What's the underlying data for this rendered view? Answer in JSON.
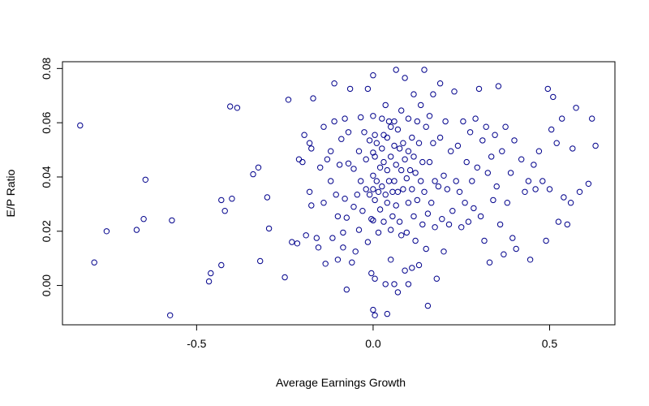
{
  "chart_data": {
    "type": "scatter",
    "xlabel": "Average Earnings Growth",
    "ylabel": "E/P Ratio",
    "xlim": [
      -0.88,
      0.685
    ],
    "ylim": [
      -0.0145,
      0.0825
    ],
    "x_ticks": [
      -0.5,
      0.0,
      0.5
    ],
    "x_tick_labels": [
      "-0.5",
      "0.0",
      "0.5"
    ],
    "y_ticks": [
      0.0,
      0.02,
      0.04,
      0.06,
      0.08
    ],
    "y_tick_labels": [
      "0.00",
      "0.02",
      "0.04",
      "0.06",
      "0.08"
    ],
    "grid": false,
    "marker": "open-circle",
    "point_color": "#00008B",
    "points": [
      [
        -0.83,
        0.059
      ],
      [
        -0.79,
        0.0085
      ],
      [
        -0.755,
        0.02
      ],
      [
        -0.67,
        0.0205
      ],
      [
        -0.65,
        0.0245
      ],
      [
        -0.645,
        0.039
      ],
      [
        -0.57,
        0.024
      ],
      [
        -0.575,
        -0.011
      ],
      [
        -0.465,
        0.0015
      ],
      [
        -0.46,
        0.0045
      ],
      [
        -0.43,
        0.0075
      ],
      [
        -0.43,
        0.0315
      ],
      [
        -0.42,
        0.0275
      ],
      [
        -0.405,
        0.066
      ],
      [
        -0.4,
        0.032
      ],
      [
        -0.385,
        0.0655
      ],
      [
        -0.34,
        0.041
      ],
      [
        -0.325,
        0.0435
      ],
      [
        -0.32,
        0.009
      ],
      [
        -0.3,
        0.0325
      ],
      [
        -0.295,
        0.021
      ],
      [
        -0.25,
        0.003
      ],
      [
        -0.24,
        0.0685
      ],
      [
        -0.23,
        0.016
      ],
      [
        -0.215,
        0.0155
      ],
      [
        -0.21,
        0.0465
      ],
      [
        -0.2,
        0.0455
      ],
      [
        -0.195,
        0.0555
      ],
      [
        -0.19,
        0.0185
      ],
      [
        -0.18,
        0.0525
      ],
      [
        -0.18,
        0.0345
      ],
      [
        -0.175,
        0.0505
      ],
      [
        -0.175,
        0.0295
      ],
      [
        -0.17,
        0.069
      ],
      [
        -0.16,
        0.0175
      ],
      [
        -0.155,
        0.014
      ],
      [
        -0.15,
        0.0435
      ],
      [
        -0.14,
        0.0585
      ],
      [
        -0.14,
        0.0305
      ],
      [
        -0.135,
        0.008
      ],
      [
        -0.13,
        0.0465
      ],
      [
        -0.12,
        0.0495
      ],
      [
        -0.12,
        0.0385
      ],
      [
        -0.115,
        0.0175
      ],
      [
        -0.11,
        0.0745
      ],
      [
        -0.11,
        0.0605
      ],
      [
        -0.105,
        0.0335
      ],
      [
        -0.1,
        0.0255
      ],
      [
        -0.1,
        0.0095
      ],
      [
        -0.095,
        0.0445
      ],
      [
        -0.09,
        0.054
      ],
      [
        -0.085,
        0.0195
      ],
      [
        -0.085,
        0.014
      ],
      [
        -0.08,
        0.0615
      ],
      [
        -0.08,
        0.032
      ],
      [
        -0.075,
        0.025
      ],
      [
        -0.075,
        -0.0015
      ],
      [
        -0.07,
        0.0565
      ],
      [
        -0.07,
        0.045
      ],
      [
        -0.065,
        0.0725
      ],
      [
        -0.06,
        0.0085
      ],
      [
        -0.055,
        0.043
      ],
      [
        -0.055,
        0.029
      ],
      [
        -0.05,
        0.0125
      ],
      [
        -0.045,
        0.0335
      ],
      [
        -0.04,
        0.0495
      ],
      [
        -0.04,
        0.0205
      ],
      [
        -0.035,
        0.062
      ],
      [
        -0.035,
        0.0385
      ],
      [
        -0.03,
        0.0275
      ],
      [
        -0.025,
        0.0565
      ],
      [
        -0.02,
        0.0465
      ],
      [
        -0.02,
        0.0355
      ],
      [
        -0.015,
        0.0725
      ],
      [
        -0.015,
        0.016
      ],
      [
        -0.01,
        0.0535
      ],
      [
        -0.01,
        0.0335
      ],
      [
        -0.005,
        0.0245
      ],
      [
        -0.005,
        0.0045
      ],
      [
        0.0,
        0.0775
      ],
      [
        0.0,
        0.0625
      ],
      [
        0.0,
        0.049
      ],
      [
        0.0,
        0.0405
      ],
      [
        0.0,
        0.0355
      ],
      [
        0.0,
        0.024
      ],
      [
        0.0,
        -0.009
      ],
      [
        0.005,
        0.0555
      ],
      [
        0.005,
        0.0475
      ],
      [
        0.005,
        0.0315
      ],
      [
        0.005,
        0.0025
      ],
      [
        0.005,
        -0.011
      ],
      [
        0.01,
        0.0525
      ],
      [
        0.01,
        0.0385
      ],
      [
        0.015,
        0.0345
      ],
      [
        0.015,
        0.0195
      ],
      [
        0.02,
        0.0435
      ],
      [
        0.02,
        0.028
      ],
      [
        0.025,
        0.0615
      ],
      [
        0.025,
        0.0505
      ],
      [
        0.025,
        0.0365
      ],
      [
        0.03,
        0.0555
      ],
      [
        0.03,
        0.0455
      ],
      [
        0.03,
        0.0235
      ],
      [
        0.035,
        0.0665
      ],
      [
        0.035,
        0.0335
      ],
      [
        0.035,
        0.0005
      ],
      [
        0.04,
        0.0545
      ],
      [
        0.04,
        0.0425
      ],
      [
        0.04,
        0.0305
      ],
      [
        0.04,
        -0.0105
      ],
      [
        0.045,
        0.0605
      ],
      [
        0.045,
        0.0385
      ],
      [
        0.05,
        0.0585
      ],
      [
        0.05,
        0.0475
      ],
      [
        0.05,
        0.0205
      ],
      [
        0.05,
        0.0095
      ],
      [
        0.055,
        0.0345
      ],
      [
        0.055,
        0.0255
      ],
      [
        0.06,
        0.0605
      ],
      [
        0.06,
        0.0515
      ],
      [
        0.06,
        0.0385
      ],
      [
        0.06,
        0.0005
      ],
      [
        0.065,
        0.0795
      ],
      [
        0.065,
        0.0445
      ],
      [
        0.065,
        0.0295
      ],
      [
        0.07,
        0.0575
      ],
      [
        0.07,
        0.0345
      ],
      [
        0.07,
        -0.0025
      ],
      [
        0.075,
        0.0505
      ],
      [
        0.075,
        0.0235
      ],
      [
        0.08,
        0.0645
      ],
      [
        0.08,
        0.0425
      ],
      [
        0.08,
        0.0185
      ],
      [
        0.085,
        0.0525
      ],
      [
        0.085,
        0.0355
      ],
      [
        0.09,
        0.0765
      ],
      [
        0.09,
        0.0465
      ],
      [
        0.09,
        0.0055
      ],
      [
        0.095,
        0.0395
      ],
      [
        0.095,
        0.0195
      ],
      [
        0.1,
        0.0615
      ],
      [
        0.1,
        0.0495
      ],
      [
        0.1,
        0.0305
      ],
      [
        0.1,
        0.0005
      ],
      [
        0.105,
        0.0425
      ],
      [
        0.11,
        0.0545
      ],
      [
        0.11,
        0.0355
      ],
      [
        0.11,
        0.0065
      ],
      [
        0.115,
        0.0705
      ],
      [
        0.115,
        0.0475
      ],
      [
        0.115,
        0.0255
      ],
      [
        0.12,
        0.0415
      ],
      [
        0.12,
        0.0165
      ],
      [
        0.125,
        0.0605
      ],
      [
        0.125,
        0.0315
      ],
      [
        0.13,
        0.0525
      ],
      [
        0.13,
        0.0075
      ],
      [
        0.135,
        0.0665
      ],
      [
        0.135,
        0.0385
      ],
      [
        0.14,
        0.0455
      ],
      [
        0.14,
        0.0225
      ],
      [
        0.145,
        0.0795
      ],
      [
        0.145,
        0.0345
      ],
      [
        0.15,
        0.0585
      ],
      [
        0.15,
        0.0135
      ],
      [
        0.155,
        0.0265
      ],
      [
        0.155,
        -0.0075
      ],
      [
        0.16,
        0.0625
      ],
      [
        0.16,
        0.0455
      ],
      [
        0.165,
        0.0305
      ],
      [
        0.17,
        0.0705
      ],
      [
        0.17,
        0.0525
      ],
      [
        0.175,
        0.0385
      ],
      [
        0.175,
        0.0215
      ],
      [
        0.18,
        0.0025
      ],
      [
        0.185,
        0.0365
      ],
      [
        0.19,
        0.0745
      ],
      [
        0.19,
        0.0545
      ],
      [
        0.195,
        0.0245
      ],
      [
        0.2,
        0.0405
      ],
      [
        0.2,
        0.0125
      ],
      [
        0.205,
        0.0605
      ],
      [
        0.21,
        0.0355
      ],
      [
        0.215,
        0.0225
      ],
      [
        0.22,
        0.0495
      ],
      [
        0.225,
        0.0275
      ],
      [
        0.23,
        0.0715
      ],
      [
        0.235,
        0.0385
      ],
      [
        0.24,
        0.0515
      ],
      [
        0.245,
        0.0345
      ],
      [
        0.25,
        0.0215
      ],
      [
        0.255,
        0.0605
      ],
      [
        0.26,
        0.0305
      ],
      [
        0.265,
        0.0455
      ],
      [
        0.27,
        0.0235
      ],
      [
        0.275,
        0.0565
      ],
      [
        0.28,
        0.0385
      ],
      [
        0.285,
        0.0285
      ],
      [
        0.29,
        0.0615
      ],
      [
        0.295,
        0.0435
      ],
      [
        0.3,
        0.0725
      ],
      [
        0.305,
        0.0255
      ],
      [
        0.31,
        0.0535
      ],
      [
        0.315,
        0.0165
      ],
      [
        0.32,
        0.0585
      ],
      [
        0.325,
        0.0415
      ],
      [
        0.33,
        0.0085
      ],
      [
        0.335,
        0.0475
      ],
      [
        0.34,
        0.0315
      ],
      [
        0.345,
        0.0555
      ],
      [
        0.35,
        0.0365
      ],
      [
        0.355,
        0.0735
      ],
      [
        0.36,
        0.0225
      ],
      [
        0.365,
        0.0495
      ],
      [
        0.37,
        0.0115
      ],
      [
        0.375,
        0.0585
      ],
      [
        0.38,
        0.0305
      ],
      [
        0.39,
        0.0415
      ],
      [
        0.395,
        0.0175
      ],
      [
        0.4,
        0.0535
      ],
      [
        0.405,
        0.0135
      ],
      [
        0.42,
        0.0465
      ],
      [
        0.43,
        0.0345
      ],
      [
        0.44,
        0.0385
      ],
      [
        0.445,
        0.0095
      ],
      [
        0.455,
        0.0445
      ],
      [
        0.46,
        0.0355
      ],
      [
        0.47,
        0.0495
      ],
      [
        0.48,
        0.0385
      ],
      [
        0.49,
        0.0165
      ],
      [
        0.495,
        0.0725
      ],
      [
        0.5,
        0.0355
      ],
      [
        0.505,
        0.0575
      ],
      [
        0.51,
        0.0695
      ],
      [
        0.52,
        0.0525
      ],
      [
        0.525,
        0.0235
      ],
      [
        0.535,
        0.0615
      ],
      [
        0.54,
        0.0325
      ],
      [
        0.55,
        0.0225
      ],
      [
        0.56,
        0.0305
      ],
      [
        0.565,
        0.0505
      ],
      [
        0.575,
        0.0655
      ],
      [
        0.585,
        0.0345
      ],
      [
        0.61,
        0.0375
      ],
      [
        0.62,
        0.0615
      ],
      [
        0.63,
        0.0515
      ]
    ]
  }
}
